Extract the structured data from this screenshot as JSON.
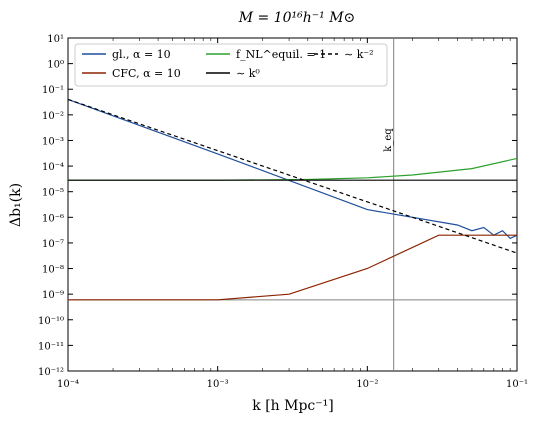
{
  "chart_data": {
    "type": "line",
    "title": "M = 10¹⁶h⁻¹ M⊙",
    "xlabel": "k  [h Mpc⁻¹]",
    "ylabel": "Δb₁(k)",
    "xscale": "log",
    "yscale": "log",
    "xlim": [
      0.0001,
      0.1
    ],
    "ylim": [
      1e-12,
      10
    ],
    "x_tick_labels": [
      "10⁻⁴",
      "10⁻³",
      "10⁻²",
      "10⁻¹"
    ],
    "y_tick_labels": [
      "10⁻¹²",
      "10⁻¹¹",
      "10⁻¹⁰",
      "10⁻⁹",
      "10⁻⁸",
      "10⁻⁷",
      "10⁻⁶",
      "10⁻⁵",
      "10⁻⁴",
      "10⁻³",
      "10⁻²",
      "10⁻¹",
      "10⁰",
      "10¹"
    ],
    "legend_position": "top-left",
    "annotation": {
      "text": "k_eq",
      "x": 0.015
    },
    "series": [
      {
        "name": "gl., α = 10",
        "color": "#1f4e9c",
        "style": "solid",
        "x": [
          0.0001,
          0.001,
          0.01,
          0.04,
          0.05,
          0.06,
          0.07,
          0.08,
          0.09,
          0.1
        ],
        "y": [
          0.04,
          0.0003,
          2e-06,
          5e-07,
          3e-07,
          4e-07,
          2e-07,
          3e-07,
          1.5e-07,
          2e-07
        ]
      },
      {
        "name": "CFC, α = 10",
        "color": "#8b2500",
        "style": "solid",
        "x": [
          0.0001,
          0.001,
          0.003,
          0.01,
          0.03,
          0.1
        ],
        "y": [
          6e-10,
          6e-10,
          1e-09,
          1e-08,
          2e-07,
          2e-07
        ]
      },
      {
        "name": "f_NL^equil. = 1",
        "color": "#2ca02c",
        "style": "solid",
        "x": [
          0.0001,
          0.001,
          0.004,
          0.01,
          0.02,
          0.05,
          0.1
        ],
        "y": [
          2.8e-05,
          2.8e-05,
          3e-05,
          3.5e-05,
          4.5e-05,
          8e-05,
          0.0002
        ]
      },
      {
        "name": "∼ k⁰",
        "color": "#000000",
        "style": "solid",
        "x": [
          0.0001,
          0.1
        ],
        "y": [
          2.8e-05,
          2.8e-05
        ]
      },
      {
        "name": "∼ k⁻²",
        "color": "#000000",
        "style": "dashed",
        "x": [
          0.0001,
          0.1
        ],
        "y": [
          0.04,
          4e-08
        ]
      }
    ],
    "reference_lines": [
      {
        "orientation": "horizontal",
        "y": 6e-10,
        "color": "#808080"
      },
      {
        "orientation": "vertical",
        "x": 0.015,
        "color": "#808080"
      }
    ]
  }
}
